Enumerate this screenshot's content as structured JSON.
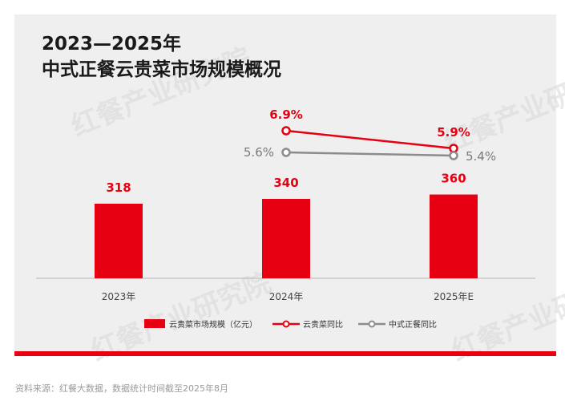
{
  "title_line1": "2023—2025年",
  "title_line2": "中式正餐云贵菜市场规模概况",
  "watermark": "红餐产业研究院",
  "source": "资料来源：红餐大数据，数据统计时间截至2025年8月",
  "colors": {
    "bar": "#e60012",
    "line_yunnan": "#e60012",
    "line_overall": "#8c8c8c",
    "card_bg": "#efefef"
  },
  "chart_data": {
    "type": "bar+line",
    "categories": [
      "2023年",
      "2024年",
      "2025年E"
    ],
    "bars": {
      "name": "云贵菜市场规模（亿元）",
      "values": [
        318,
        340,
        360
      ],
      "labels": [
        "318",
        "340",
        "360"
      ]
    },
    "lines": [
      {
        "name": "云贵菜同比",
        "values": [
          null,
          6.9,
          5.9
        ],
        "labels": [
          "",
          "6.9%",
          "5.9%"
        ]
      },
      {
        "name": "中式正餐同比",
        "values": [
          null,
          5.6,
          5.4
        ],
        "labels": [
          "",
          "5.6%",
          "5.4%"
        ]
      }
    ],
    "legend": [
      "云贵菜市场规模（亿元）",
      "云贵菜同比",
      "中式正餐同比"
    ],
    "legend_position": "bottom"
  }
}
